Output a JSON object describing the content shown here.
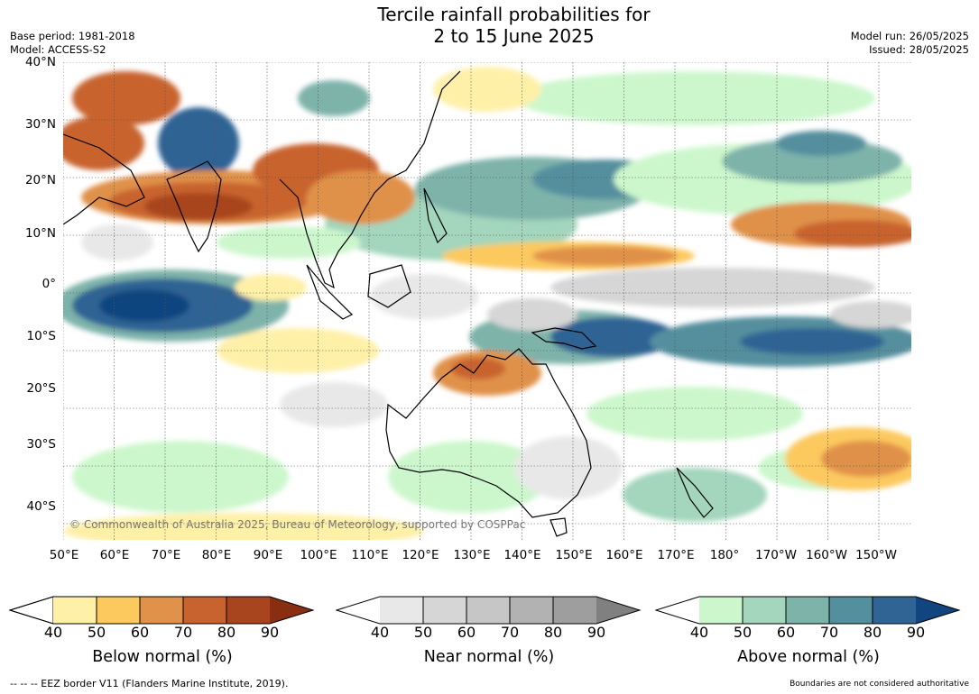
{
  "title": {
    "line1": "Tercile rainfall probabilities for",
    "line2": "2 to 15 June 2025"
  },
  "meta_left": {
    "base_period": "Base period: 1981-2018",
    "model": "Model: ACCESS-S2"
  },
  "meta_right": {
    "model_run": "Model run: 26/05/2025",
    "issued": "Issued: 28/05/2025"
  },
  "copyright": "© Commonwealth of Australia 2025, Bureau of Meteorology, supported by COSPPac",
  "lat_labels": [
    "40°N",
    "30°N",
    "20°N",
    "10°N",
    "0°",
    "10°S",
    "20°S",
    "30°S",
    "40°S"
  ],
  "lon_labels": [
    "50°E",
    "60°E",
    "70°E",
    "80°E",
    "90°E",
    "100°E",
    "110°E",
    "120°E",
    "130°E",
    "140°E",
    "150°E",
    "160°E",
    "170°E",
    "180°",
    "170°W",
    "160°W",
    "150°W"
  ],
  "legends": [
    {
      "title": "Below normal (%)",
      "ticks": [
        "40",
        "50",
        "60",
        "70",
        "80",
        "90"
      ],
      "colors": [
        "#fff0a8",
        "#fcc95e",
        "#e0914a",
        "#c8632f",
        "#a8451f",
        "#8a2e12"
      ]
    },
    {
      "title": "Near normal (%)",
      "ticks": [
        "40",
        "50",
        "60",
        "70",
        "80",
        "90"
      ],
      "colors": [
        "#e8e8e8",
        "#d6d6d6",
        "#c6c6c6",
        "#b2b2b2",
        "#9e9e9e",
        "#808080"
      ]
    },
    {
      "title": "Above normal (%)",
      "ticks": [
        "40",
        "50",
        "60",
        "70",
        "80",
        "90"
      ],
      "colors": [
        "#ccf7cc",
        "#a3d6bc",
        "#7eb3aa",
        "#548f9e",
        "#2f6494",
        "#10457f"
      ]
    }
  ],
  "footer_left": "--  --  -- EEZ border V11 (Flanders Marine Institute, 2019).",
  "footer_right": "Boundaries are not considered authoritative"
}
